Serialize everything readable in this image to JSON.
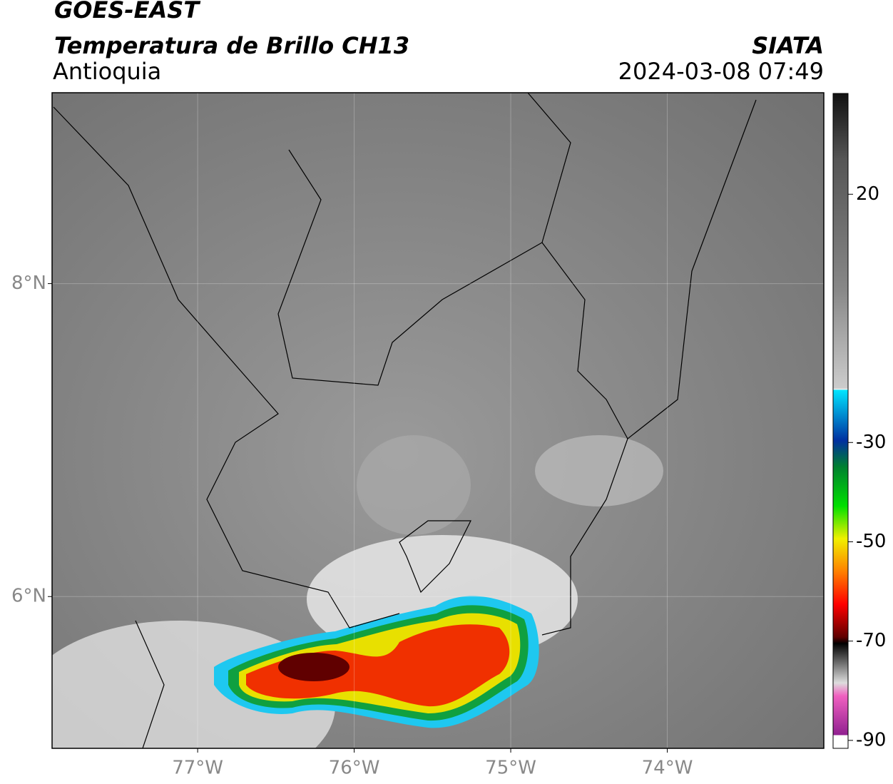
{
  "header": {
    "satellite": "GOES-EAST",
    "product": "Temperatura de Brillo CH13",
    "region": "Antioquia",
    "agency": "SIATA",
    "datetime": "2024-03-08 07:49"
  },
  "map": {
    "xlim": [
      -77.93,
      -73.0
    ],
    "ylim": [
      5.03,
      9.22
    ],
    "xticks": [
      {
        "value": -77,
        "label": "77°W"
      },
      {
        "value": -76,
        "label": "76°W"
      },
      {
        "value": -75,
        "label": "75°W"
      },
      {
        "value": -74,
        "label": "74°W"
      }
    ],
    "yticks": [
      {
        "value": 8,
        "label": "8°N"
      },
      {
        "value": 6,
        "label": "6°N"
      }
    ]
  },
  "colorbar": {
    "lim": [
      -91.6,
      40.3
    ],
    "ticks": [
      20,
      -30,
      -50,
      -70,
      -90
    ]
  }
}
